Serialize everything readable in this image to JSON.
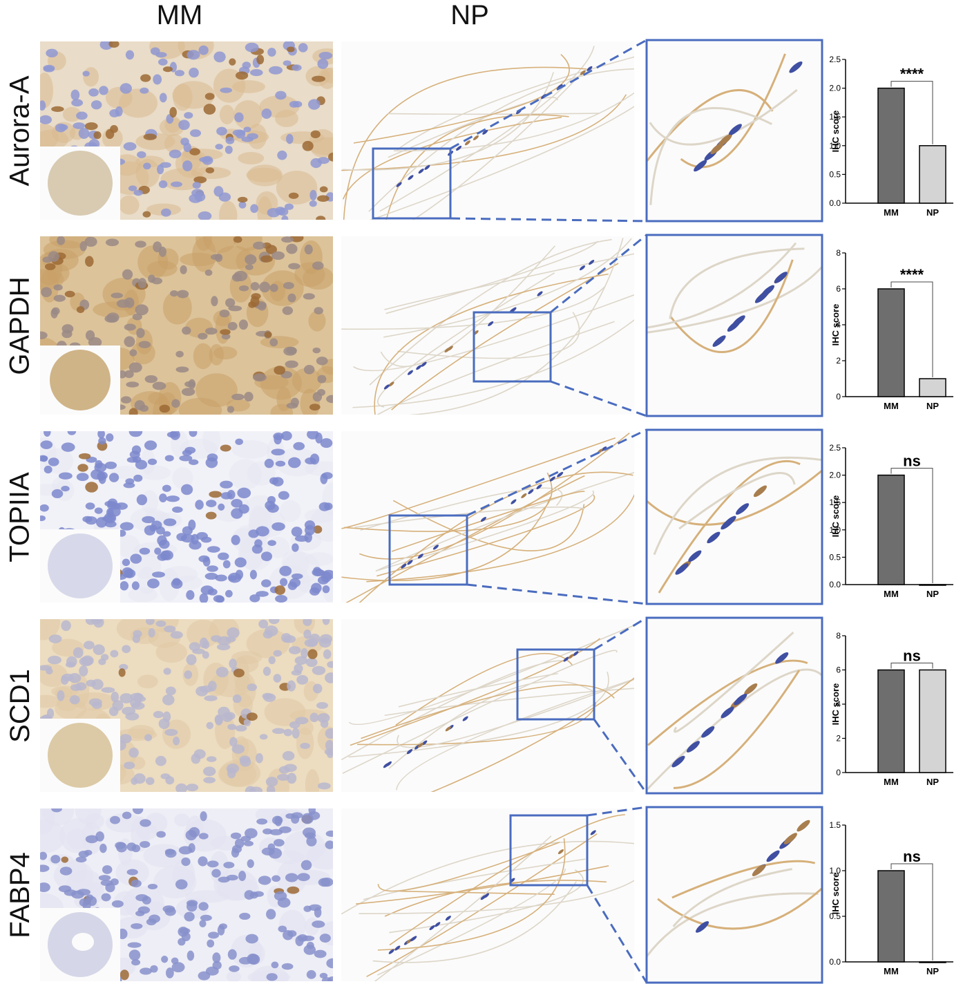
{
  "columns": {
    "mm": "MM",
    "np": "NP"
  },
  "colors": {
    "mm_bar": "#6e6e6e",
    "np_bar": "#d4d4d4",
    "box": "#4a6cbf",
    "hematoxylin": "#7f88c8",
    "dab": "#c9a06a"
  },
  "rows": [
    {
      "label": "Aurora-A",
      "stain": "moderate"
    },
    {
      "label": "GAPDH",
      "stain": "strong"
    },
    {
      "label": "TOPIIA",
      "stain": "nuclear"
    },
    {
      "label": "SCD1",
      "stain": "diffuse"
    },
    {
      "label": "FABP4",
      "stain": "sparse"
    }
  ],
  "chart_data": [
    {
      "type": "bar",
      "categories": [
        "MM",
        "NP"
      ],
      "values": [
        2,
        1
      ],
      "ylabel": "IHC score",
      "ylim": [
        0,
        2.5
      ],
      "yticks": [
        "0.0",
        "0.5",
        "1.0",
        "1.5",
        "2.0",
        "2.5"
      ],
      "significance": "****",
      "np_fill": "grey"
    },
    {
      "type": "bar",
      "categories": [
        "MM",
        "NP"
      ],
      "values": [
        6,
        1
      ],
      "ylabel": "IHC score",
      "ylim": [
        0,
        8
      ],
      "yticks": [
        "0",
        "2",
        "4",
        "6",
        "8"
      ],
      "significance": "****",
      "np_fill": "grey"
    },
    {
      "type": "bar",
      "categories": [
        "MM",
        "NP"
      ],
      "values": [
        2,
        0
      ],
      "ylabel": "IHC score",
      "ylim": [
        0,
        2.5
      ],
      "yticks": [
        "0.0",
        "0.5",
        "1.0",
        "1.5",
        "2.0",
        "2.5"
      ],
      "significance": "ns",
      "np_fill": "white"
    },
    {
      "type": "bar",
      "categories": [
        "MM",
        "NP"
      ],
      "values": [
        6,
        6
      ],
      "ylabel": "IHC score",
      "ylim": [
        0,
        8
      ],
      "yticks": [
        "0",
        "2",
        "4",
        "6",
        "8"
      ],
      "significance": "ns",
      "np_fill": "grey"
    },
    {
      "type": "bar",
      "categories": [
        "MM",
        "NP"
      ],
      "values": [
        1,
        0
      ],
      "ylabel": "IHC score",
      "ylim": [
        0,
        1.5
      ],
      "yticks": [
        "0.0",
        "0.5",
        "1.0",
        "1.5"
      ],
      "significance": "ns",
      "np_fill": "white"
    }
  ]
}
